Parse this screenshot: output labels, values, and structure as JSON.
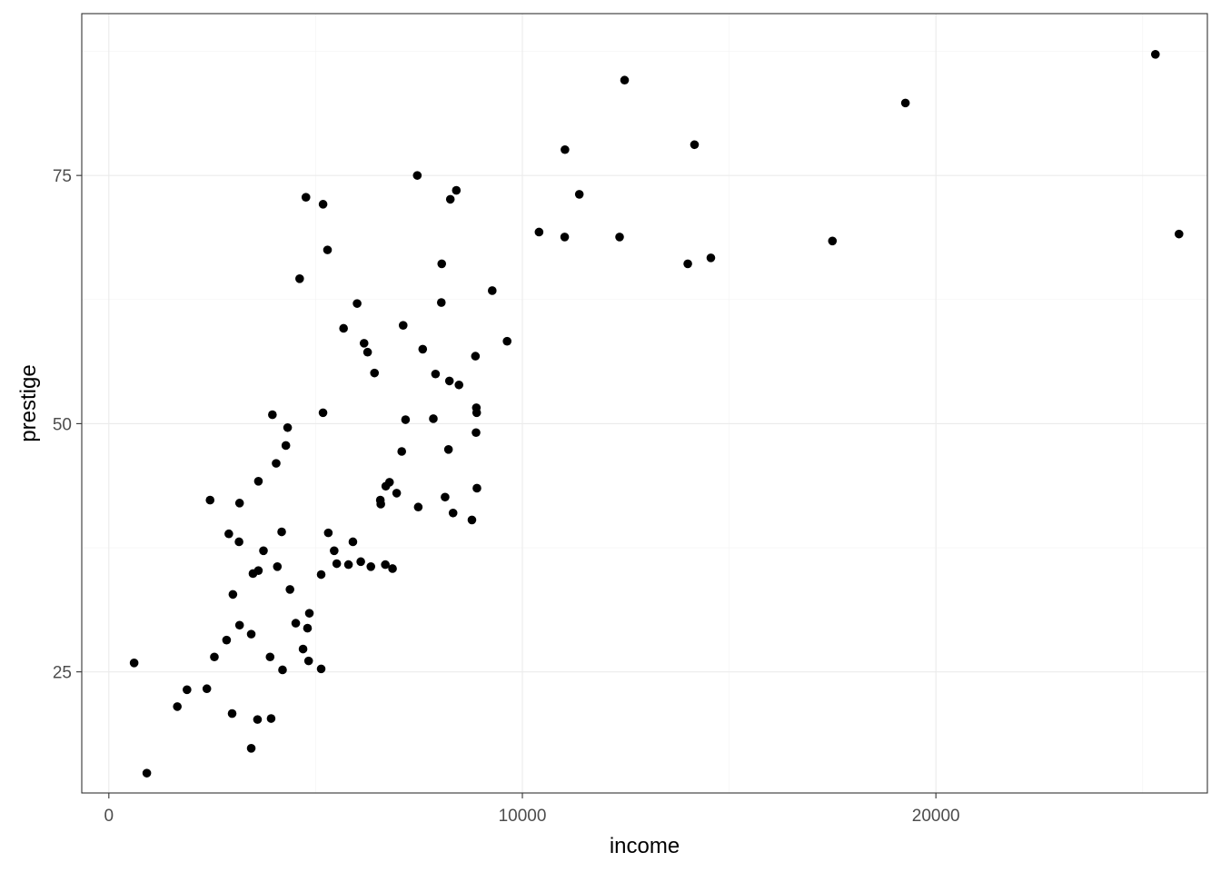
{
  "chart_data": {
    "type": "scatter",
    "xlabel": "income",
    "ylabel": "prestige",
    "xlim": [
      -655,
      26565
    ],
    "ylim": [
      12.8,
      91.3
    ],
    "x_ticks": [
      0,
      10000,
      20000
    ],
    "x_tick_labels": [
      "0",
      "10000",
      "20000"
    ],
    "y_ticks": [
      25,
      50,
      75
    ],
    "y_tick_labels": [
      "25",
      "50",
      "75"
    ],
    "grid": true,
    "point_color": "#000000",
    "points": [
      {
        "x": 12351,
        "y": 68.8
      },
      {
        "x": 25879,
        "y": 69.1
      },
      {
        "x": 9271,
        "y": 63.4
      },
      {
        "x": 8865,
        "y": 56.8
      },
      {
        "x": 8403,
        "y": 73.5
      },
      {
        "x": 11030,
        "y": 77.6
      },
      {
        "x": 8258,
        "y": 72.6
      },
      {
        "x": 14163,
        "y": 78.1
      },
      {
        "x": 11377,
        "y": 73.1
      },
      {
        "x": 11023,
        "y": 68.8
      },
      {
        "x": 17498,
        "y": 68.4
      },
      {
        "x": 14558,
        "y": 66.7
      },
      {
        "x": 10403,
        "y": 69.3
      },
      {
        "x": 7459,
        "y": 75.0
      },
      {
        "x": 5180,
        "y": 72.1
      },
      {
        "x": 14000,
        "y": 66.1
      },
      {
        "x": 8050,
        "y": 66.1
      },
      {
        "x": 9631,
        "y": 58.3
      },
      {
        "x": 4766,
        "y": 72.8
      },
      {
        "x": 5288,
        "y": 67.5
      },
      {
        "x": 7590,
        "y": 57.5
      },
      {
        "x": 6004,
        "y": 62.1
      },
      {
        "x": 4614,
        "y": 64.6
      },
      {
        "x": 12472,
        "y": 84.6
      },
      {
        "x": 25308,
        "y": 87.2
      },
      {
        "x": 19263,
        "y": 82.3
      },
      {
        "x": 8895,
        "y": 51.1
      },
      {
        "x": 5676,
        "y": 59.6
      },
      {
        "x": 8040,
        "y": 62.2
      },
      {
        "x": 6424,
        "y": 55.1
      },
      {
        "x": 5179,
        "y": 51.1
      },
      {
        "x": 6257,
        "y": 57.2
      },
      {
        "x": 7117,
        "y": 59.9
      },
      {
        "x": 7900,
        "y": 55.0
      },
      {
        "x": 8467,
        "y": 53.9
      },
      {
        "x": 6172,
        "y": 58.1
      },
      {
        "x": 8236,
        "y": 54.3
      },
      {
        "x": 8887,
        "y": 51.6
      },
      {
        "x": 7847,
        "y": 50.5
      },
      {
        "x": 3955,
        "y": 50.9
      },
      {
        "x": 4323,
        "y": 49.6
      },
      {
        "x": 7175,
        "y": 50.4
      },
      {
        "x": 8880,
        "y": 49.1
      },
      {
        "x": 4281,
        "y": 47.8
      },
      {
        "x": 4046,
        "y": 46.0
      },
      {
        "x": 7083,
        "y": 47.2
      },
      {
        "x": 8213,
        "y": 47.4
      },
      {
        "x": 3617,
        "y": 44.2
      },
      {
        "x": 6787,
        "y": 44.1
      },
      {
        "x": 6697,
        "y": 43.7
      },
      {
        "x": 8901,
        "y": 43.5
      },
      {
        "x": 6960,
        "y": 43.0
      },
      {
        "x": 6565,
        "y": 42.3
      },
      {
        "x": 6576,
        "y": 41.9
      },
      {
        "x": 8131,
        "y": 42.6
      },
      {
        "x": 7482,
        "y": 41.6
      },
      {
        "x": 8324,
        "y": 41.0
      },
      {
        "x": 8780,
        "y": 40.3
      },
      {
        "x": 3161,
        "y": 42.0
      },
      {
        "x": 2448,
        "y": 42.3
      },
      {
        "x": 2901,
        "y": 38.9
      },
      {
        "x": 3148,
        "y": 38.1
      },
      {
        "x": 4179,
        "y": 39.1
      },
      {
        "x": 5307,
        "y": 39.0
      },
      {
        "x": 5902,
        "y": 38.1
      },
      {
        "x": 3739,
        "y": 37.2
      },
      {
        "x": 5449,
        "y": 37.2
      },
      {
        "x": 6092,
        "y": 36.1
      },
      {
        "x": 5511,
        "y": 35.9
      },
      {
        "x": 5795,
        "y": 35.8
      },
      {
        "x": 6336,
        "y": 35.6
      },
      {
        "x": 6686,
        "y": 35.8
      },
      {
        "x": 6860,
        "y": 35.4
      },
      {
        "x": 4075,
        "y": 35.6
      },
      {
        "x": 3616,
        "y": 35.2
      },
      {
        "x": 3485,
        "y": 34.9
      },
      {
        "x": 5134,
        "y": 34.8
      },
      {
        "x": 3000,
        "y": 32.8
      },
      {
        "x": 4380,
        "y": 33.3
      },
      {
        "x": 4849,
        "y": 30.9
      },
      {
        "x": 4520,
        "y": 29.9
      },
      {
        "x": 3161,
        "y": 29.7
      },
      {
        "x": 4804,
        "y": 29.4
      },
      {
        "x": 3443,
        "y": 28.8
      },
      {
        "x": 2847,
        "y": 28.2
      },
      {
        "x": 4696,
        "y": 27.3
      },
      {
        "x": 2552,
        "y": 26.5
      },
      {
        "x": 3899,
        "y": 26.5
      },
      {
        "x": 4831,
        "y": 26.1
      },
      {
        "x": 611,
        "y": 25.9
      },
      {
        "x": 4200,
        "y": 25.2
      },
      {
        "x": 5134,
        "y": 25.3
      },
      {
        "x": 2370,
        "y": 23.3
      },
      {
        "x": 1890,
        "y": 23.2
      },
      {
        "x": 1656,
        "y": 21.5
      },
      {
        "x": 2981,
        "y": 20.8
      },
      {
        "x": 3595,
        "y": 20.2
      },
      {
        "x": 3924,
        "y": 20.3
      },
      {
        "x": 3443,
        "y": 17.3
      },
      {
        "x": 918,
        "y": 14.8
      }
    ]
  }
}
